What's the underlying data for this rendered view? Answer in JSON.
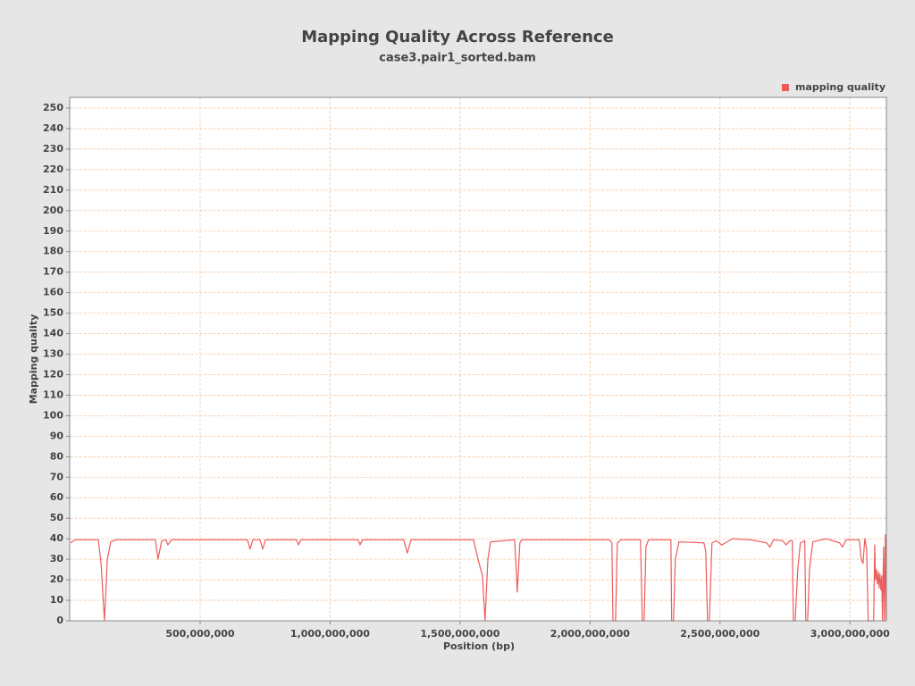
{
  "chart_data": {
    "type": "line",
    "title": "Mapping Quality Across Reference",
    "subtitle": "case3.pair1_sorted.bam",
    "x_label": "Position (bp)",
    "y_label": "Mapping quality",
    "legend": "top-right",
    "grid": true,
    "xlim": [
      0,
      3140000000
    ],
    "ylim": [
      0,
      250
    ],
    "xticks": [
      {
        "value": 500000000,
        "label": "500,000,000"
      },
      {
        "value": 1000000000,
        "label": "1,000,000,000"
      },
      {
        "value": 1500000000,
        "label": "1,500,000,000"
      },
      {
        "value": 2000000000,
        "label": "2,000,000,000"
      },
      {
        "value": 2500000000,
        "label": "2,500,000,000"
      },
      {
        "value": 3000000000,
        "label": "3,000,000,000"
      }
    ],
    "yticks": [
      0,
      10,
      20,
      30,
      40,
      50,
      60,
      70,
      80,
      90,
      100,
      110,
      120,
      130,
      140,
      150,
      160,
      170,
      180,
      190,
      200,
      210,
      220,
      230,
      240,
      250
    ],
    "x": [
      2000000,
      19000000,
      108000000,
      119000000,
      132000000,
      143000000,
      156000000,
      177000000,
      328000000,
      338000000,
      352000000,
      369000000,
      376000000,
      390000000,
      682000000,
      692000000,
      703000000,
      730000000,
      741000000,
      751000000,
      871000000,
      878000000,
      888000000,
      1108000000,
      1115000000,
      1125000000,
      1283000000,
      1297000000,
      1311000000,
      1552000000,
      1569000000,
      1586000000,
      1596000000,
      1607000000,
      1617000000,
      1710000000,
      1720000000,
      1730000000,
      1737000000,
      2074000000,
      2084000000,
      2088000000,
      2098000000,
      2105000000,
      2119000000,
      2194000000,
      2201000000,
      2208000000,
      2215000000,
      2225000000,
      2311000000,
      2314000000,
      2321000000,
      2328000000,
      2342000000,
      2438000000,
      2445000000,
      2452000000,
      2459000000,
      2469000000,
      2486000000,
      2507000000,
      2521000000,
      2548000000,
      2617000000,
      2679000000,
      2692000000,
      2706000000,
      2741000000,
      2754000000,
      2768000000,
      2778000000,
      2782000000,
      2789000000,
      2799000000,
      2809000000,
      2826000000,
      2830000000,
      2837000000,
      2844000000,
      2857000000,
      2909000000,
      2960000000,
      2971000000,
      2985000000,
      3036000000,
      3043000000,
      3050000000,
      3057000000,
      3064000000,
      3070000000,
      3091000000,
      3095000000,
      3098000000,
      3101000000,
      3105000000,
      3108000000,
      3112000000,
      3115000000,
      3119000000,
      3122000000,
      3125000000,
      3129000000,
      3132000000,
      3136000000,
      3139000000
    ],
    "series": [
      {
        "name": "mapping quality",
        "color": "#ee5a5a",
        "values": [
          38,
          39.5,
          39.5,
          28,
          0,
          30,
          38.5,
          39.5,
          39.5,
          30,
          39,
          39.5,
          37,
          39.5,
          39.5,
          35,
          39.5,
          39.5,
          35,
          39.5,
          39.5,
          37,
          39.5,
          39.5,
          37,
          39.5,
          39.5,
          33,
          39.5,
          39.5,
          30,
          22,
          0,
          30,
          38.5,
          39.5,
          14,
          38,
          39.5,
          39.5,
          38,
          0,
          0,
          38,
          39.5,
          39.5,
          0,
          0,
          36,
          39.5,
          39.5,
          0,
          0,
          30,
          38.5,
          38,
          34,
          0,
          0,
          38,
          39,
          37,
          38,
          40,
          39.5,
          38,
          36,
          39.5,
          39,
          37,
          39,
          39,
          0,
          0,
          25,
          38,
          39,
          0,
          0,
          25,
          38.5,
          40,
          38,
          36,
          39.5,
          39.5,
          30,
          28,
          40,
          35,
          0,
          0,
          37,
          20,
          25,
          18,
          24,
          16,
          23,
          15,
          22,
          0,
          36,
          0,
          42,
          0
        ]
      }
    ]
  }
}
